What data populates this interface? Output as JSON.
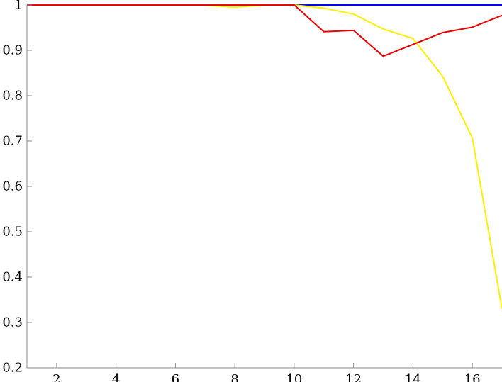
{
  "chart_data": {
    "type": "line",
    "title": "",
    "xlabel": "",
    "ylabel": "",
    "xlim": [
      1,
      17
    ],
    "ylim": [
      0.2,
      1
    ],
    "xticks": [
      2,
      4,
      6,
      8,
      10,
      12,
      14,
      16
    ],
    "yticks": [
      0.2,
      0.3,
      0.4,
      0.5,
      0.6,
      0.7,
      0.8,
      0.9,
      1
    ],
    "x_tick_labels": [
      "2",
      "4",
      "6",
      "8",
      "10",
      "12",
      "14",
      "16"
    ],
    "y_tick_labels": [
      "0.2",
      "0.3",
      "0.4",
      "0.5",
      "0.6",
      "0.7",
      "0.8",
      "0.9",
      "1"
    ],
    "grid": false,
    "series": [
      {
        "color": "#0000ff",
        "x": [
          1,
          2,
          3,
          4,
          5,
          6,
          7,
          8,
          9,
          10,
          11,
          12,
          13,
          14,
          15,
          16,
          17
        ],
        "y": [
          1,
          1,
          1,
          1,
          1,
          1,
          1,
          1,
          1,
          1,
          1,
          1,
          1,
          1,
          1,
          1,
          1
        ]
      },
      {
        "color": "#ffee00",
        "x": [
          1,
          2,
          3,
          4,
          5,
          6,
          7,
          8,
          9,
          10,
          11,
          12,
          13,
          14,
          15,
          16,
          17
        ],
        "y": [
          1,
          1,
          1,
          1,
          1,
          1,
          1,
          0.995,
          1,
          1,
          0.993,
          0.98,
          0.947,
          0.926,
          0.843,
          0.707,
          0.33
        ]
      },
      {
        "color": "#ee0000",
        "x": [
          1,
          2,
          3,
          4,
          5,
          6,
          7,
          8,
          9,
          10,
          11,
          12,
          13,
          14,
          15,
          16,
          17
        ],
        "y": [
          1,
          1,
          1,
          1,
          1,
          1,
          1,
          1,
          1,
          1,
          0.941,
          0.944,
          0.887,
          0.913,
          0.939,
          0.951,
          0.977
        ]
      }
    ]
  }
}
